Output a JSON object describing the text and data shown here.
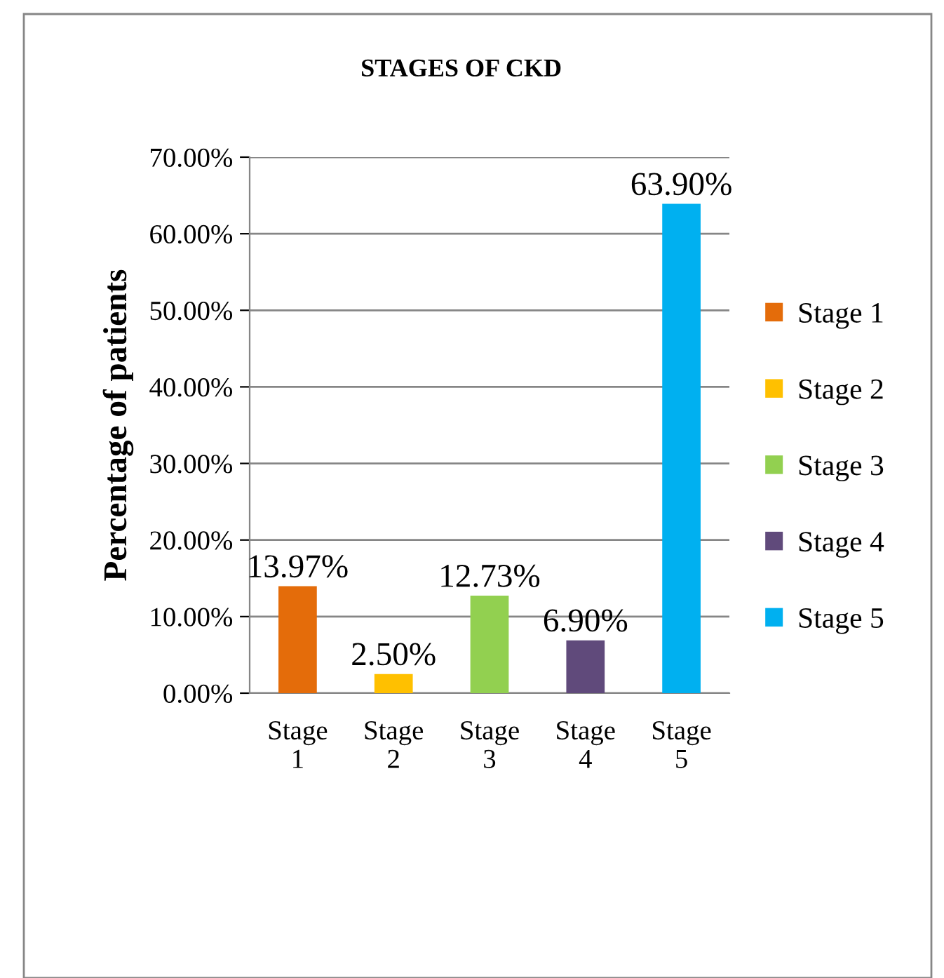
{
  "chart_data": {
    "type": "bar",
    "title": "STAGES OF CKD",
    "ylabel": "Percentage of patients",
    "categories": [
      "Stage 1",
      "Stage 2",
      "Stage 3",
      "Stage 4",
      "Stage 5"
    ],
    "stacked": true,
    "series": [
      {
        "name": "Stage 1",
        "color": "#e46c0a",
        "values": [
          13.97,
          null,
          null,
          null,
          null
        ],
        "value_labels": [
          "13.97%",
          null,
          null,
          null,
          null
        ]
      },
      {
        "name": "Stage 2",
        "color": "#ffc000",
        "values": [
          null,
          2.5,
          null,
          null,
          null
        ],
        "value_labels": [
          null,
          "2.50%",
          null,
          null,
          null
        ]
      },
      {
        "name": "Stage 3",
        "color": "#92d050",
        "values": [
          null,
          null,
          12.73,
          null,
          null
        ],
        "value_labels": [
          null,
          null,
          "12.73%",
          null,
          null
        ]
      },
      {
        "name": "Stage 4",
        "color": "#604a7b",
        "values": [
          null,
          null,
          null,
          6.9,
          null
        ],
        "value_labels": [
          null,
          null,
          null,
          "6.90%",
          null
        ]
      },
      {
        "name": "Stage 5",
        "color": "#00b0f0",
        "values": [
          null,
          null,
          null,
          null,
          63.9
        ],
        "value_labels": [
          null,
          null,
          null,
          null,
          "63.90%"
        ]
      }
    ],
    "ylim": [
      0,
      70
    ],
    "yticks": [
      {
        "value": 0,
        "label": "0.00%"
      },
      {
        "value": 10,
        "label": "10.00%"
      },
      {
        "value": 20,
        "label": "20.00%"
      },
      {
        "value": 30,
        "label": "30.00%"
      },
      {
        "value": 40,
        "label": "40.00%"
      },
      {
        "value": 50,
        "label": "50.00%"
      },
      {
        "value": 60,
        "label": "60.00%"
      },
      {
        "value": 70,
        "label": "70.00%"
      }
    ],
    "grid": "y",
    "legend": "right"
  }
}
